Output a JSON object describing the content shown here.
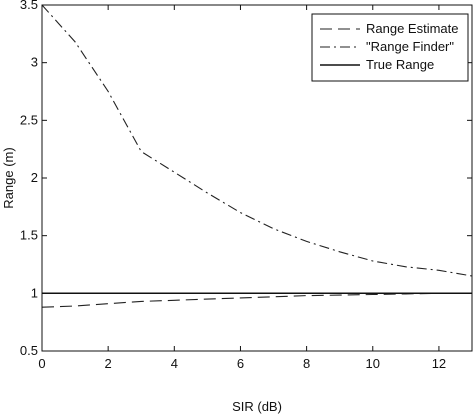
{
  "chart_data": {
    "type": "line",
    "title": "",
    "xlabel": "SIR (dB)",
    "ylabel": "Range (m)",
    "xlim": [
      0,
      13
    ],
    "ylim": [
      0.5,
      3.5
    ],
    "xticks": [
      0,
      2,
      4,
      6,
      8,
      10,
      12
    ],
    "yticks": [
      0.5,
      1,
      1.5,
      2,
      2.5,
      3,
      3.5
    ],
    "xtick_labels": [
      "0",
      "2",
      "4",
      "6",
      "8",
      "10",
      "12"
    ],
    "ytick_labels": [
      "0.5",
      "1",
      "1.5",
      "2",
      "2.5",
      "3",
      "3.5"
    ],
    "grid": false,
    "legend_position": "top-right",
    "series": [
      {
        "name": "Range Estimate",
        "style": "dashed",
        "color": "#222222",
        "x": [
          0,
          1,
          2,
          3,
          4,
          5,
          6,
          7,
          8,
          9,
          10,
          11,
          12,
          13
        ],
        "y": [
          0.88,
          0.89,
          0.91,
          0.93,
          0.94,
          0.95,
          0.96,
          0.97,
          0.98,
          0.985,
          0.99,
          0.995,
          1.0,
          1.0
        ]
      },
      {
        "name": "\"Range Finder\"",
        "style": "dashdot",
        "color": "#222222",
        "x": [
          0,
          1,
          2,
          3,
          4,
          5,
          6,
          7,
          8,
          9,
          10,
          11,
          12,
          13
        ],
        "y": [
          3.5,
          3.18,
          2.75,
          2.23,
          2.05,
          1.87,
          1.7,
          1.56,
          1.45,
          1.36,
          1.28,
          1.23,
          1.2,
          1.15
        ]
      },
      {
        "name": "True Range",
        "style": "solid",
        "color": "#111111",
        "x": [
          0,
          13
        ],
        "y": [
          1.0,
          1.0
        ]
      }
    ]
  }
}
